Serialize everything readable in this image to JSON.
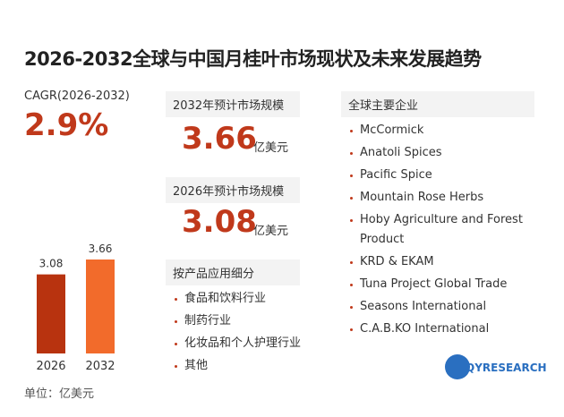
{
  "title": "2026-2032全球与中国月桂叶市场现状及未来发展趋势",
  "cagr": {
    "label": "CAGR(2026-2032)",
    "value": "2.9%"
  },
  "market_2032": {
    "label": "2032年预计市场规模",
    "value": "3.66",
    "unit": "亿美元"
  },
  "market_2026": {
    "label": "2026年预计市场规模",
    "value": "3.08",
    "unit": "亿美元"
  },
  "segments": {
    "title": "按产品应用细分",
    "items": [
      "食品和饮料行业",
      "制药行业",
      "化妆品和个人护理行业",
      "其他"
    ]
  },
  "companies": {
    "title": "全球主要企业",
    "items": [
      "McCormick",
      "Anatoli Spices",
      "Pacific Spice",
      "Mountain Rose Herbs",
      "Hoby Agriculture and Forest Product",
      "KRD & EKAM",
      "Tuna Project Global Trade",
      "Seasons International",
      "C.A.B.KO International"
    ]
  },
  "logo": "QYRESEARCH",
  "chart_data": {
    "type": "bar",
    "categories": [
      "2026",
      "2032"
    ],
    "values": [
      3.08,
      3.66
    ],
    "colors": [
      "#b8330f",
      "#f26b2b"
    ],
    "unit_label": "单位：亿美元"
  }
}
